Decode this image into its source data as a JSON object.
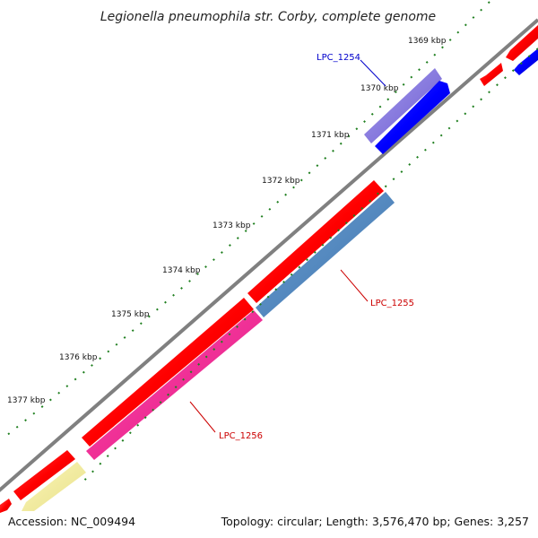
{
  "title": "Legionella pneumophila str. Corby, complete genome",
  "footer": {
    "accession": "Accession: NC_009494",
    "stats": "Topology: circular; Length: 3,576,470 bp; Genes: 3,257"
  },
  "ticks": [
    "1369 kbp",
    "1370 kbp",
    "1371 kbp",
    "1372 kbp",
    "1373 kbp",
    "1374 kbp",
    "1375 kbp",
    "1376 kbp",
    "1377 kbp"
  ],
  "genes": [
    {
      "label": "LPC_1254",
      "color": "#0000cc"
    },
    {
      "label": "LPC_1255",
      "color": "#cc0000"
    },
    {
      "label": "LPC_1256",
      "color": "#cc0000"
    }
  ],
  "colors": {
    "backbone": "#808080",
    "forward_cds": "#ff0000",
    "reverse_cds": "#0000ff",
    "purple": "#8878dd",
    "steelblue": "#4f86c0",
    "magenta": "#ff2299",
    "khaki": "#f5ef9c",
    "tick_green": "#1f7f1f"
  }
}
